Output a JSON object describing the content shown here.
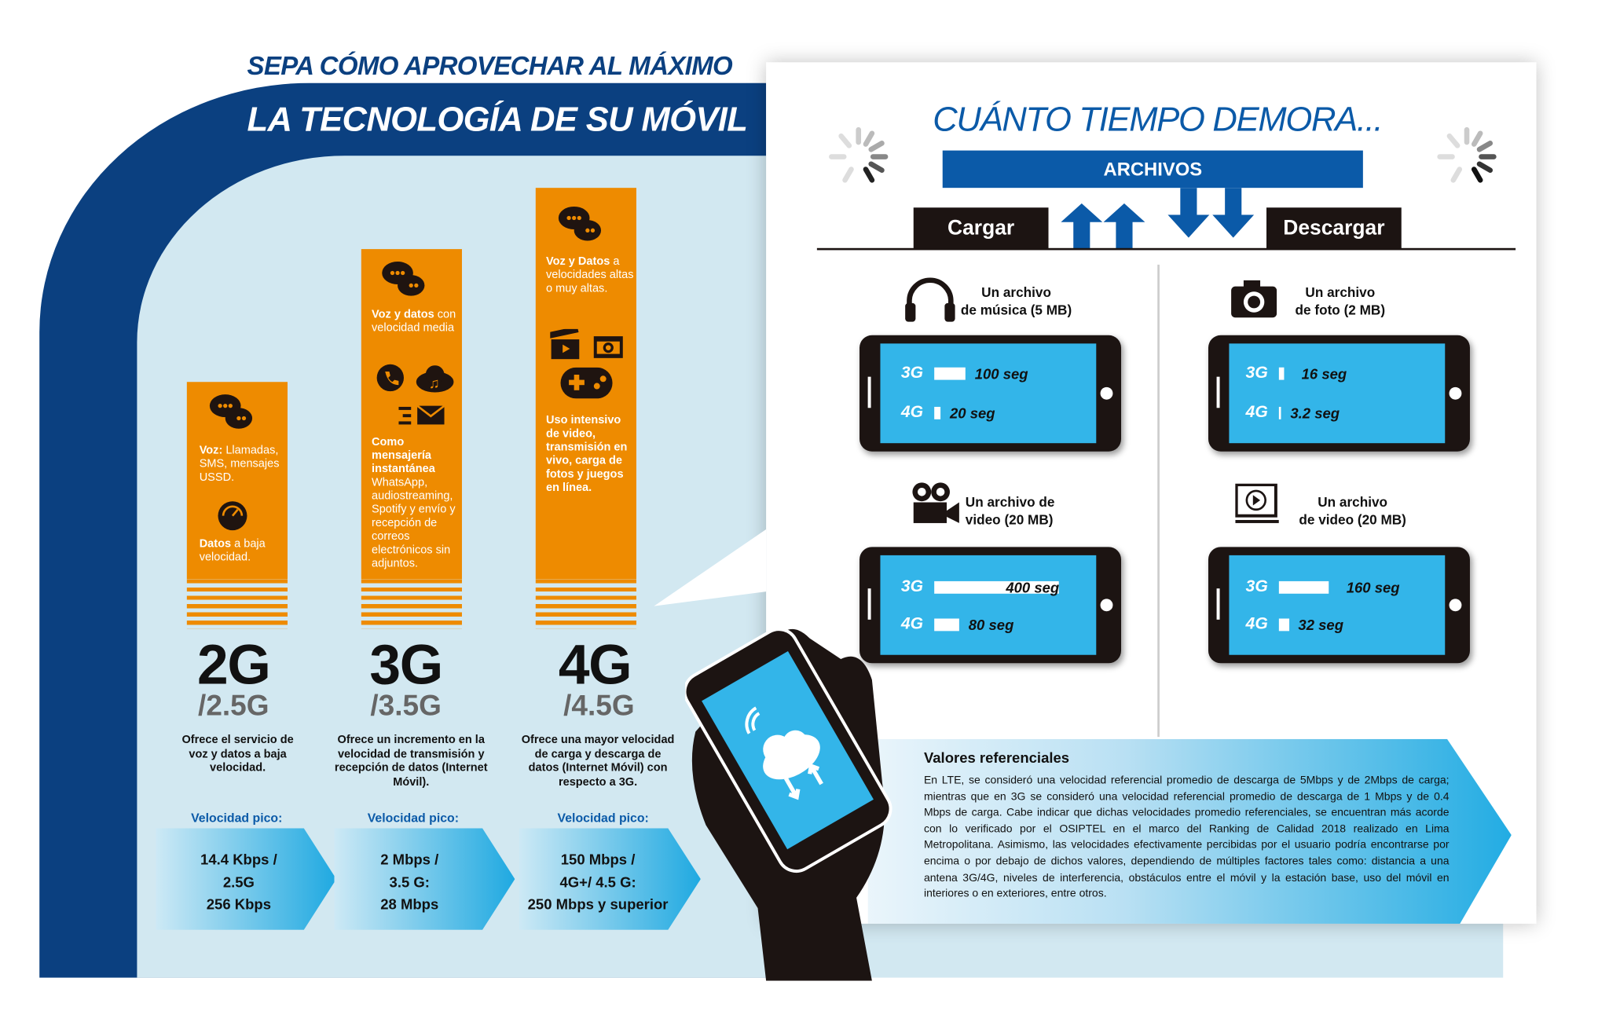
{
  "header": {
    "line1": "SEPA CÓMO APROVECHAR AL MÁXIMO",
    "line2": "LA TECNOLOGÍA DE SU MÓVIL"
  },
  "colors": {
    "navy": "#0b4080",
    "orange": "#ee8b00",
    "light_blue": "#d2e8f1",
    "screen_blue": "#33b5e9",
    "accent_blue": "#0b5aa8"
  },
  "generations": [
    {
      "name": "2G",
      "sub": "/2.5G",
      "bar_text": [
        {
          "bold": "Voz:",
          "rest": " Llamadas, SMS, mensajes USSD."
        },
        {
          "bold": "Datos",
          "rest": " a baja velocidad."
        }
      ],
      "icons": [
        "chat-bubbles-icon",
        "speedometer-icon"
      ],
      "description": "Ofrece el servicio de voz y datos a baja velocidad.",
      "peak_label": "Velocidad pico:",
      "peak": [
        "14.4 Kbps /",
        "2.5G",
        "256 Kbps"
      ]
    },
    {
      "name": "3G",
      "sub": "/3.5G",
      "bar_text": [
        {
          "bold": "Voz y datos",
          "rest": " con velocidad media"
        },
        {
          "bold": "Como mensajería instantánea",
          "rest": " WhatsApp, audiostreaming, Spotify y envío y recepción de correos electrónicos sin adjuntos."
        }
      ],
      "icons": [
        "chat-bubbles-icon",
        "phone-call-icon",
        "cloud-music-icon",
        "email-icon"
      ],
      "description": "Ofrece un incremento en la velocidad de transmisión y recepción de datos (Internet Móvil).",
      "peak_label": "Velocidad pico:",
      "peak": [
        "2 Mbps /",
        "3.5 G:",
        "28 Mbps"
      ]
    },
    {
      "name": "4G",
      "sub": "/4.5G",
      "bar_text": [
        {
          "bold": "Voz y Datos",
          "rest": " a velocidades altas o muy altas."
        },
        {
          "bold": "Uso intensivo de video, transmisión en vivo, carga de fotos y juegos en línea.",
          "rest": ""
        }
      ],
      "icons": [
        "chat-bubbles-icon",
        "clapperboard-icon",
        "camera-icon",
        "gamepad-icon"
      ],
      "description": "Ofrece una mayor velocidad de carga y descarga de datos (Internet Móvil) con respecto a 3G.",
      "peak_label": "Velocidad pico:",
      "peak": [
        "150 Mbps /",
        "4G+/ 4.5 G:",
        "250 Mbps y superior"
      ]
    }
  ],
  "right": {
    "title": "CUÁNTO TIEMPO DEMORA...",
    "files_label": "ARCHIVOS",
    "upload_label": "Cargar",
    "download_label": "Descargar",
    "panels": [
      {
        "title": [
          "Un archivo",
          "de música (5 MB)"
        ],
        "icon": "headphones-icon",
        "rows": [
          {
            "tech": "3G",
            "seconds": 100,
            "text": "100 seg"
          },
          {
            "tech": "4G",
            "seconds": 20,
            "text": "20 seg"
          }
        ]
      },
      {
        "title": [
          "Un archivo",
          "de foto (2 MB)"
        ],
        "icon": "camera-icon",
        "rows": [
          {
            "tech": "3G",
            "seconds": 16,
            "text": "16 seg"
          },
          {
            "tech": "4G",
            "seconds": 3.2,
            "text": "3.2 seg"
          }
        ]
      },
      {
        "title": [
          "Un archivo de",
          "video (20 MB)"
        ],
        "icon": "video-camera-icon",
        "rows": [
          {
            "tech": "3G",
            "seconds": 400,
            "text": "400 seg"
          },
          {
            "tech": "4G",
            "seconds": 80,
            "text": "80 seg"
          }
        ]
      },
      {
        "title": [
          "Un archivo",
          "de video (20 MB)"
        ],
        "icon": "video-play-icon",
        "rows": [
          {
            "tech": "3G",
            "seconds": 160,
            "text": "160 seg"
          },
          {
            "tech": "4G",
            "seconds": 32,
            "text": "32 seg"
          }
        ]
      }
    ],
    "note": {
      "title": "Valores referenciales",
      "body": "En LTE, se consideró una velocidad referencial promedio de descarga de 5Mbps y de 2Mbps de carga; mientras que en 3G se consideró una velocidad referencial promedio de descarga de 1 Mbps y de 0.4 Mbps de carga. Cabe indicar que dichas velocidades promedio referenciales, se encuentran más acorde con lo verificado por el OSIPTEL en el marco del Ranking de Calidad 2018 realizado en Lima Metropolitana. Asimismo, las velocidades efectivamente percibidas por el usuario podría encontrarse por encima o por debajo de dichos valores, dependiendo de múltiples factores tales como: distancia a una antena 3G/4G, niveles de interferencia, obstáculos entre el móvil y la estación base, uso del móvil en interiores o en exteriores, entre otros."
    }
  }
}
